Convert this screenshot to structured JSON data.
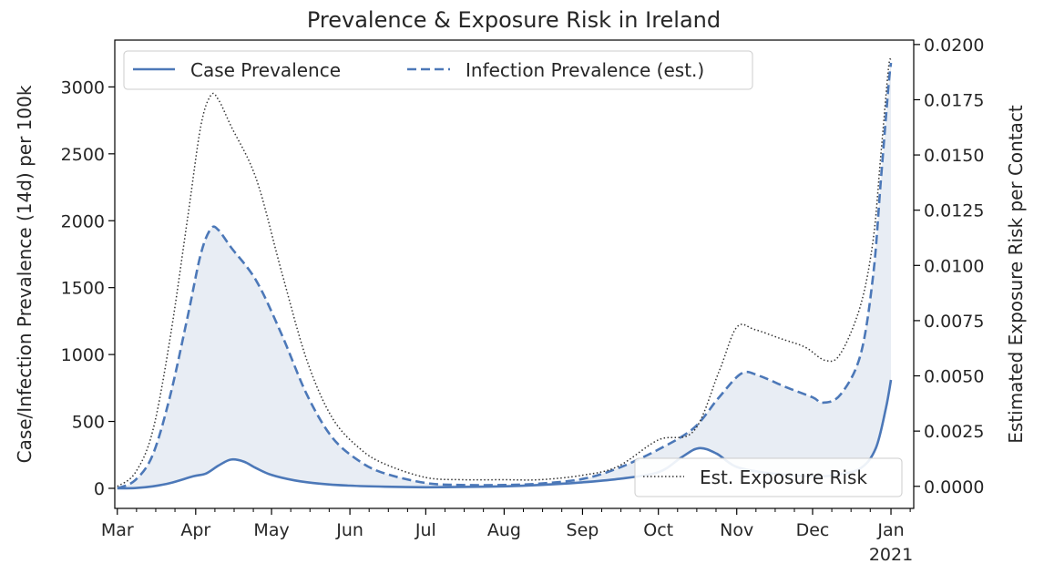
{
  "chart_data": {
    "type": "line",
    "title": "Prevalence & Exposure Risk in Ireland",
    "ylabel_left": "Case/Infection Prevalence (14d) per 100k",
    "ylabel_right": "Estimated Exposure Risk per Contact",
    "x_ticks": [
      "Mar",
      "Apr",
      "May",
      "Jun",
      "Jul",
      "Aug",
      "Sep",
      "Oct",
      "Nov",
      "Dec",
      "Jan"
    ],
    "x_year_label": "2021",
    "xlim": [
      "2020-02-29",
      "2021-01-10"
    ],
    "ylim_left": [
      -150,
      3350
    ],
    "y_ticks_left": [
      "0",
      "500",
      "1000",
      "1500",
      "2000",
      "2500",
      "3000"
    ],
    "ylim_right": [
      -0.001,
      0.0202
    ],
    "y_ticks_right": [
      "0.0000",
      "0.0025",
      "0.0050",
      "0.0075",
      "0.0100",
      "0.0125",
      "0.0150",
      "0.0175",
      "0.0200"
    ],
    "grid": false,
    "legend_main_position": "upper-left",
    "legend_risk_position": "lower-right",
    "colors": {
      "case": "#4c78b8",
      "infection": "#4c78b8",
      "risk": "#333333",
      "fill": "#e8edf4"
    },
    "series": [
      {
        "name": "Case Prevalence",
        "axis": "left",
        "style": "solid",
        "points": [
          [
            "2020-03-01",
            0
          ],
          [
            "2020-03-08",
            2
          ],
          [
            "2020-03-15",
            15
          ],
          [
            "2020-03-22",
            40
          ],
          [
            "2020-03-31",
            90
          ],
          [
            "2020-04-05",
            110
          ],
          [
            "2020-04-10",
            170
          ],
          [
            "2020-04-15",
            215
          ],
          [
            "2020-04-20",
            200
          ],
          [
            "2020-04-25",
            150
          ],
          [
            "2020-05-01",
            100
          ],
          [
            "2020-05-10",
            60
          ],
          [
            "2020-05-20",
            35
          ],
          [
            "2020-06-01",
            20
          ],
          [
            "2020-06-15",
            12
          ],
          [
            "2020-07-01",
            8
          ],
          [
            "2020-07-15",
            10
          ],
          [
            "2020-08-01",
            15
          ],
          [
            "2020-08-15",
            25
          ],
          [
            "2020-09-01",
            45
          ],
          [
            "2020-09-15",
            70
          ],
          [
            "2020-10-01",
            120
          ],
          [
            "2020-10-10",
            230
          ],
          [
            "2020-10-17",
            300
          ],
          [
            "2020-10-24",
            260
          ],
          [
            "2020-11-01",
            160
          ],
          [
            "2020-11-15",
            110
          ],
          [
            "2020-12-01",
            90
          ],
          [
            "2020-12-10",
            100
          ],
          [
            "2020-12-20",
            150
          ],
          [
            "2020-12-26",
            300
          ],
          [
            "2020-12-30",
            600
          ],
          [
            "2021-01-01",
            810
          ]
        ]
      },
      {
        "name": "Infection Prevalence (est.)",
        "axis": "left",
        "style": "dashed",
        "points": [
          [
            "2020-03-01",
            0
          ],
          [
            "2020-03-08",
            60
          ],
          [
            "2020-03-15",
            250
          ],
          [
            "2020-03-22",
            700
          ],
          [
            "2020-03-29",
            1300
          ],
          [
            "2020-04-03",
            1750
          ],
          [
            "2020-04-07",
            1940
          ],
          [
            "2020-04-10",
            1930
          ],
          [
            "2020-04-15",
            1800
          ],
          [
            "2020-04-25",
            1550
          ],
          [
            "2020-05-05",
            1150
          ],
          [
            "2020-05-15",
            700
          ],
          [
            "2020-05-25",
            380
          ],
          [
            "2020-06-05",
            200
          ],
          [
            "2020-06-15",
            110
          ],
          [
            "2020-07-01",
            40
          ],
          [
            "2020-07-15",
            25
          ],
          [
            "2020-08-01",
            25
          ],
          [
            "2020-08-15",
            35
          ],
          [
            "2020-09-01",
            70
          ],
          [
            "2020-09-15",
            150
          ],
          [
            "2020-10-01",
            290
          ],
          [
            "2020-10-15",
            450
          ],
          [
            "2020-10-25",
            680
          ],
          [
            "2020-11-03",
            860
          ],
          [
            "2020-11-10",
            840
          ],
          [
            "2020-11-20",
            760
          ],
          [
            "2020-12-01",
            680
          ],
          [
            "2020-12-05",
            640
          ],
          [
            "2020-12-12",
            700
          ],
          [
            "2020-12-20",
            1000
          ],
          [
            "2020-12-25",
            1600
          ],
          [
            "2020-12-28",
            2300
          ],
          [
            "2020-12-31",
            3000
          ],
          [
            "2021-01-01",
            3180
          ]
        ]
      },
      {
        "name": "Est. Exposure Risk",
        "axis": "right",
        "style": "dotted",
        "points": [
          [
            "2020-03-01",
            0.0
          ],
          [
            "2020-03-08",
            0.0006
          ],
          [
            "2020-03-15",
            0.0025
          ],
          [
            "2020-03-22",
            0.0068
          ],
          [
            "2020-03-29",
            0.0123
          ],
          [
            "2020-04-03",
            0.0163
          ],
          [
            "2020-04-07",
            0.0177
          ],
          [
            "2020-04-10",
            0.0175
          ],
          [
            "2020-04-15",
            0.0163
          ],
          [
            "2020-04-25",
            0.0139
          ],
          [
            "2020-05-05",
            0.0097
          ],
          [
            "2020-05-15",
            0.0057
          ],
          [
            "2020-05-25",
            0.0031
          ],
          [
            "2020-06-05",
            0.0017
          ],
          [
            "2020-06-15",
            0.001
          ],
          [
            "2020-07-01",
            0.0004
          ],
          [
            "2020-07-15",
            0.0003
          ],
          [
            "2020-08-01",
            0.0003
          ],
          [
            "2020-08-15",
            0.0003
          ],
          [
            "2020-09-01",
            0.0005
          ],
          [
            "2020-09-15",
            0.0009
          ],
          [
            "2020-10-01",
            0.0021
          ],
          [
            "2020-10-15",
            0.0025
          ],
          [
            "2020-10-25",
            0.0052
          ],
          [
            "2020-11-01",
            0.0072
          ],
          [
            "2020-11-08",
            0.0071
          ],
          [
            "2020-11-18",
            0.0067
          ],
          [
            "2020-11-28",
            0.0063
          ],
          [
            "2020-12-06",
            0.0057
          ],
          [
            "2020-12-12",
            0.006
          ],
          [
            "2020-12-20",
            0.0082
          ],
          [
            "2020-12-25",
            0.0112
          ],
          [
            "2020-12-28",
            0.015
          ],
          [
            "2020-12-31",
            0.0189
          ],
          [
            "2021-01-01",
            0.0193
          ]
        ]
      }
    ]
  }
}
